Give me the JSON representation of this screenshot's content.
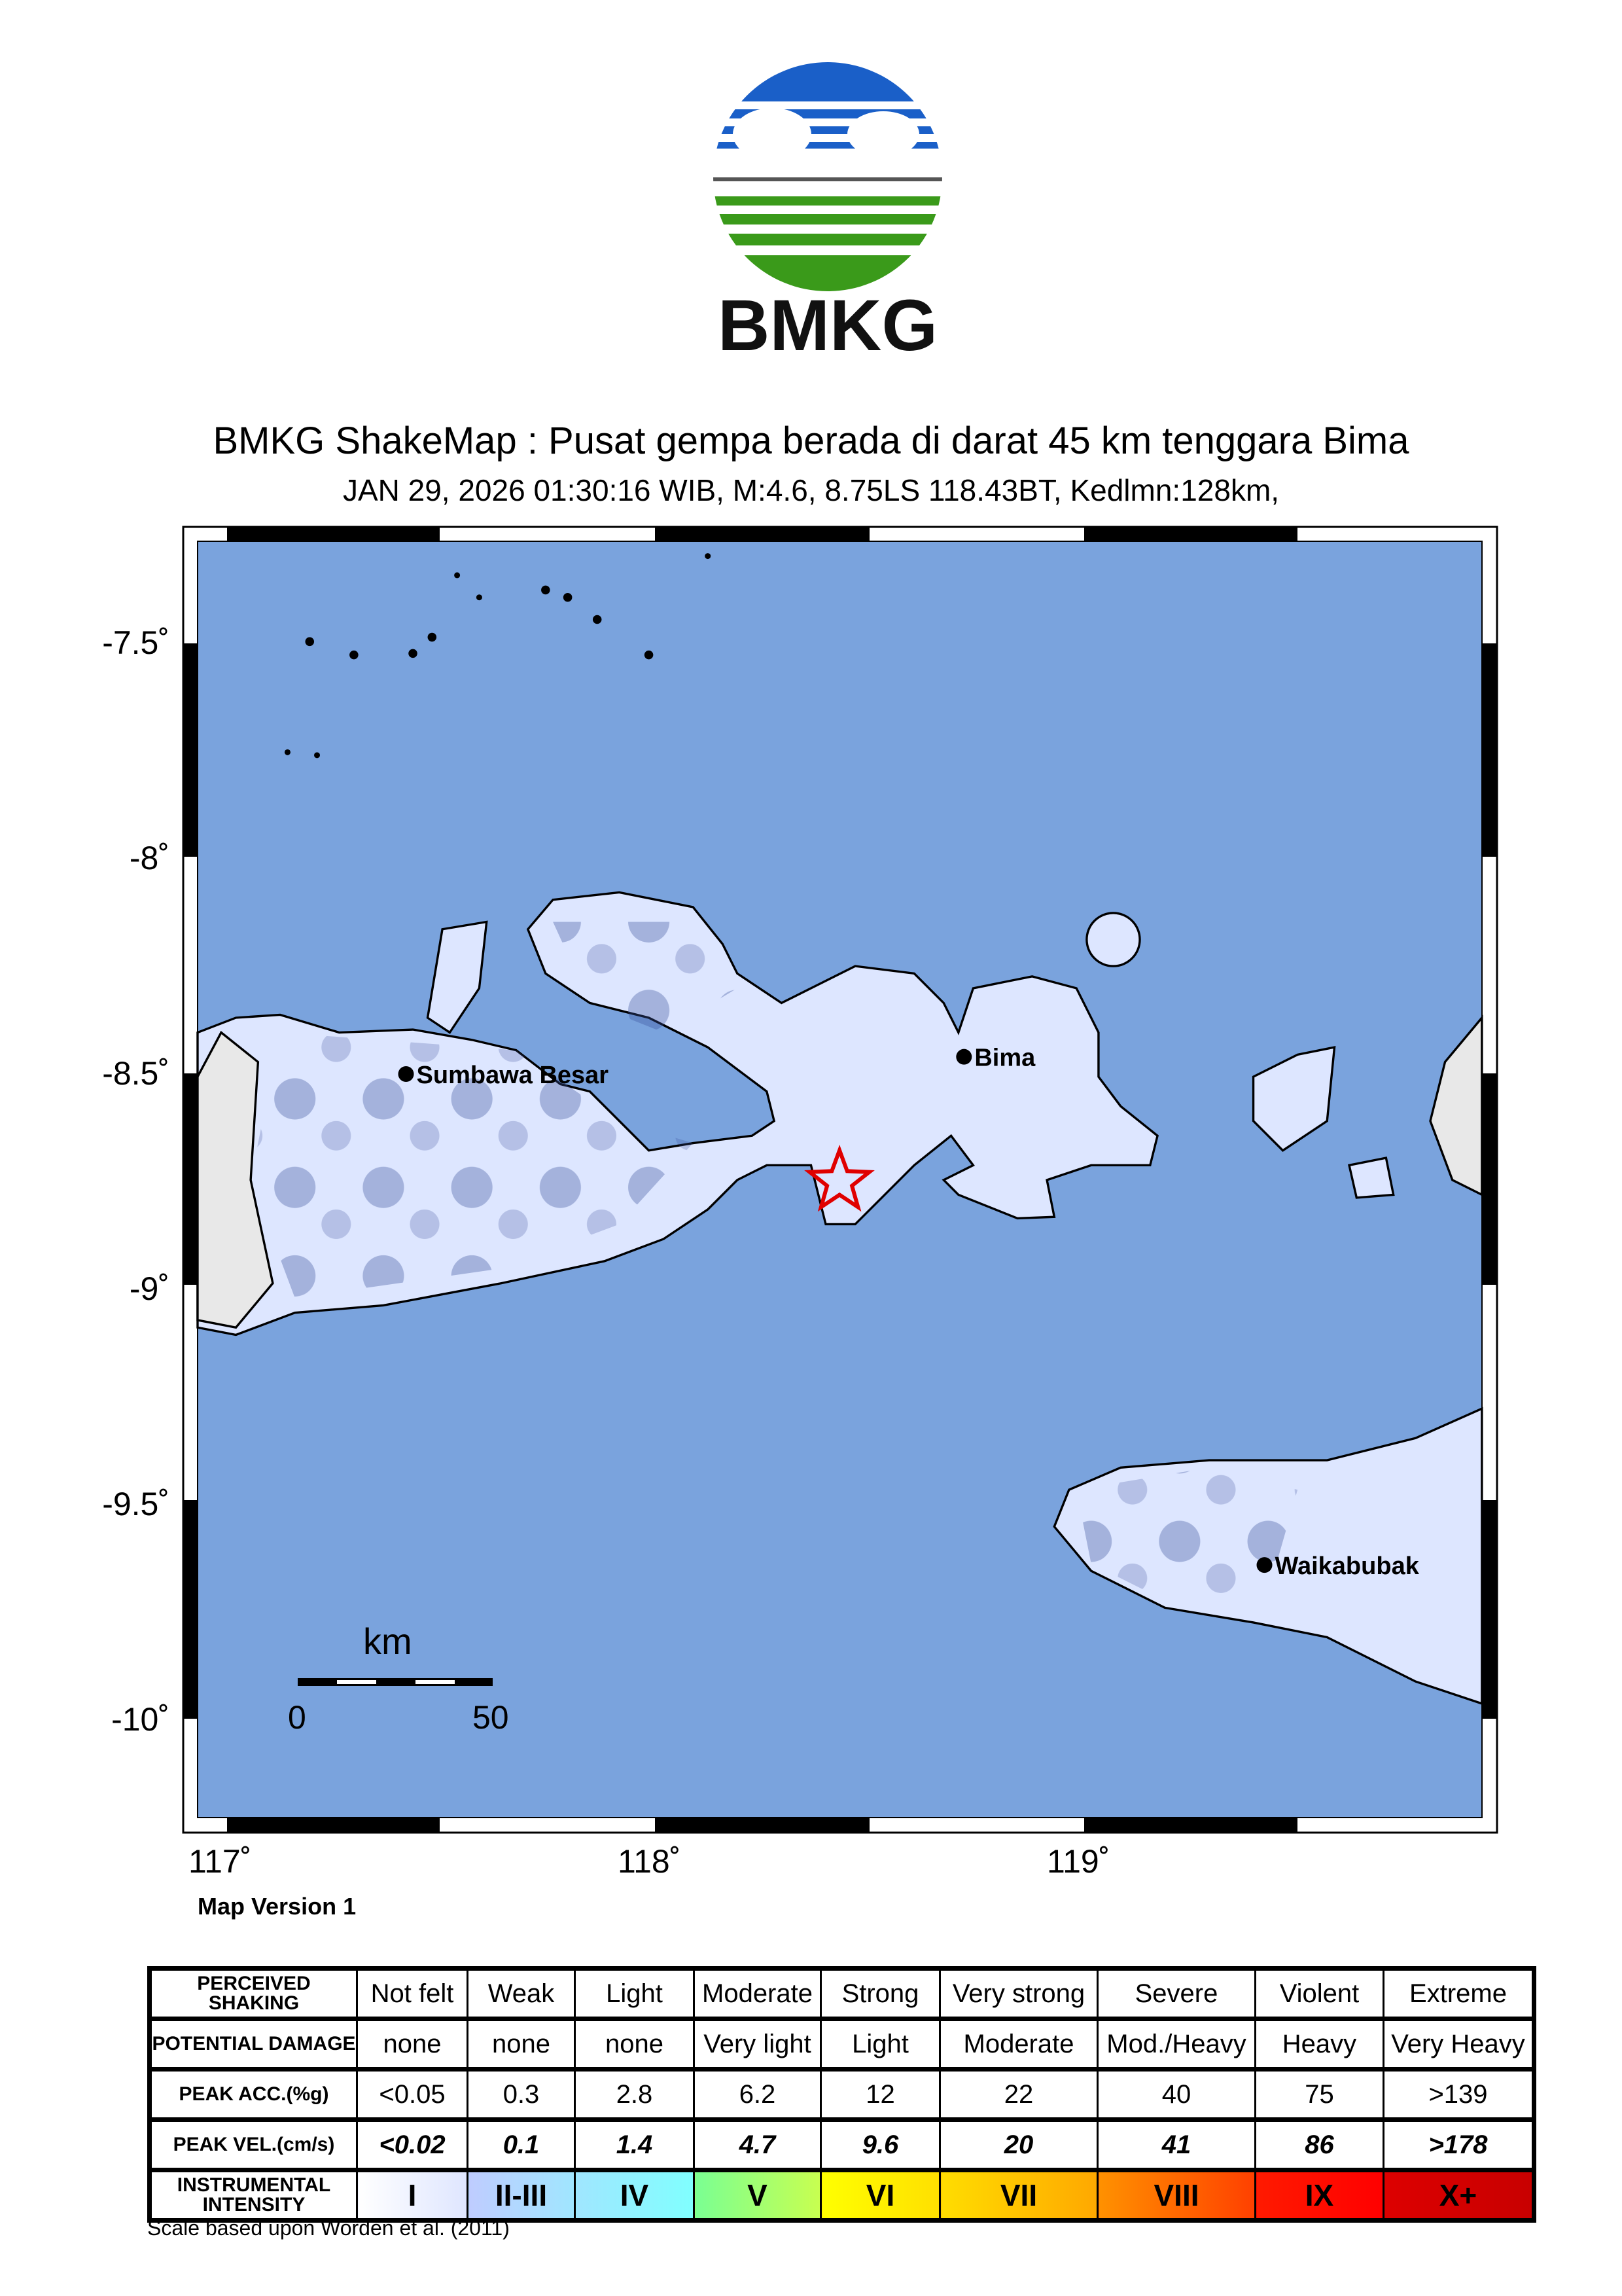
{
  "logo": {
    "text": "BMKG",
    "colors": {
      "blue": "#1a5fc8",
      "green": "#3a9a1a",
      "gray": "#555555"
    }
  },
  "title": "BMKG ShakeMap : Pusat gempa berada di darat 45 km tenggara Bima",
  "subtitle": "JAN 29, 2026 01:30:16 WIB, M:4.6, 8.75LS 118.43BT, Kedlmn:128km,",
  "map": {
    "lat_labels": [
      "-7.5˚",
      "-8˚",
      "-8.5˚",
      "-9˚",
      "-9.5˚",
      "-10˚"
    ],
    "lon_labels": [
      "117˚",
      "118˚",
      "119˚"
    ],
    "cities": [
      {
        "name": "Sumbawa Besar",
        "lon": 117.42,
        "lat": -8.5
      },
      {
        "name": "Bima",
        "lon": 118.72,
        "lat": -8.46
      },
      {
        "name": "Waikabubak",
        "lon": 119.42,
        "lat": -9.64
      }
    ],
    "epicenter": {
      "lon": 118.43,
      "lat": -8.75,
      "icon": "star-icon",
      "color": "#e00000"
    },
    "scale_bar": {
      "unit": "km",
      "labels": [
        "0",
        "50"
      ]
    },
    "colors": {
      "sea": "#7aa3dd",
      "land_low": "#dde6ff",
      "land_mid": "#9fe8f0",
      "land_high": "#5fcfd6",
      "land_dark": "#3a4f9a"
    },
    "version": "Map Version 1"
  },
  "legend": {
    "rows": [
      {
        "label": "PERCEIVED SHAKING",
        "values": [
          "Not felt",
          "Weak",
          "Light",
          "Moderate",
          "Strong",
          "Very strong",
          "Severe",
          "Violent",
          "Extreme"
        ]
      },
      {
        "label": "POTENTIAL DAMAGE",
        "values": [
          "none",
          "none",
          "none",
          "Very light",
          "Light",
          "Moderate",
          "Mod./Heavy",
          "Heavy",
          "Very Heavy"
        ]
      },
      {
        "label": "PEAK ACC.(%g)",
        "values": [
          "<0.05",
          "0.3",
          "2.8",
          "6.2",
          "12",
          "22",
          "40",
          "75",
          ">139"
        ]
      },
      {
        "label": "PEAK VEL.(cm/s)",
        "values": [
          "<0.02",
          "0.1",
          "1.4",
          "4.7",
          "9.6",
          "20",
          "41",
          "86",
          ">178"
        ]
      },
      {
        "label": "INSTRUMENTAL INTENSITY",
        "values": [
          "I",
          "II-III",
          "IV",
          "V",
          "VI",
          "VII",
          "VIII",
          "IX",
          "X+"
        ]
      }
    ],
    "intensity_colors": [
      [
        "#ffffff",
        "#dfe6ff"
      ],
      [
        "#bfccff",
        "#a0e6ff"
      ],
      [
        "#a0e6ff",
        "#80ffff"
      ],
      [
        "#7aff93",
        "#c8ff50"
      ],
      [
        "#ffff00",
        "#ffe000"
      ],
      [
        "#ffdd00",
        "#ffa800"
      ],
      [
        "#ff9100",
        "#ff4000"
      ],
      [
        "#ff1a00",
        "#ff0000"
      ],
      [
        "#dd0000",
        "#c80000"
      ]
    ],
    "note": "Scale based upon Worden et al. (2011)"
  }
}
